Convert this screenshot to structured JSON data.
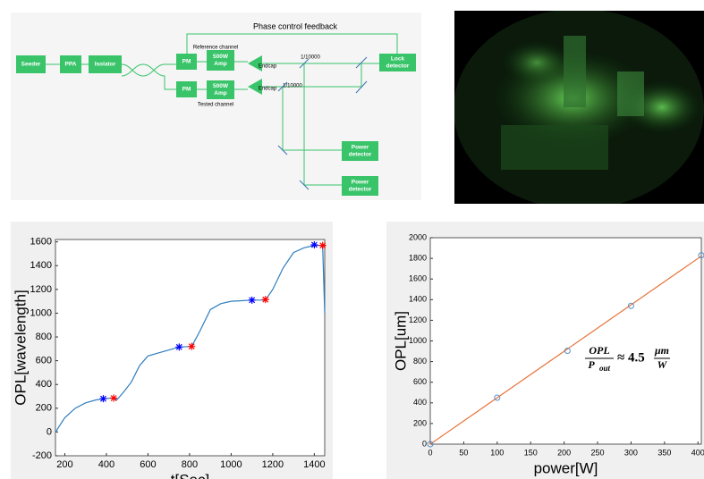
{
  "diagram": {
    "title": "Phase control feedback",
    "nodes": [
      {
        "lines": [
          "Seeder"
        ]
      },
      {
        "lines": [
          "PPA"
        ]
      },
      {
        "lines": [
          "Isolator"
        ]
      },
      {
        "lines": [
          "PM"
        ]
      },
      {
        "lines": [
          "500W",
          "Amp"
        ]
      },
      {
        "lines": [
          "PM"
        ]
      },
      {
        "lines": [
          "500W",
          "Amp"
        ]
      },
      {
        "lines": [
          "Lock",
          "detector"
        ]
      },
      {
        "lines": [
          "Power",
          "detector"
        ]
      },
      {
        "lines": [
          "Power",
          "detector"
        ]
      }
    ],
    "labels": [
      "Reference channel",
      "Tested channel",
      "Endcap",
      "Endcap",
      "1/10000",
      "1/10000"
    ]
  },
  "chart_data": [
    {
      "type": "line",
      "xlabel": "t[Sec]",
      "ylabel": "OPL[wavelength]",
      "xlim": [
        155,
        1450
      ],
      "ylim": [
        -200,
        1620
      ],
      "xticks": [
        200,
        400,
        600,
        800,
        1000,
        1200,
        1400
      ],
      "yticks": [
        -200,
        0,
        200,
        400,
        600,
        800,
        1000,
        1200,
        1400,
        1600
      ],
      "series": [
        {
          "mode": "line",
          "color": "#2f7dbd",
          "x": [
            155,
            170,
            200,
            250,
            300,
            350,
            385,
            420,
            435,
            450,
            480,
            520,
            560,
            600,
            650,
            700,
            750,
            810,
            850,
            900,
            950,
            1000,
            1050,
            1100,
            1165,
            1200,
            1250,
            1300,
            1350,
            1400,
            1440,
            1450
          ],
          "values": [
            -5,
            40,
            120,
            200,
            245,
            270,
            280,
            285,
            285,
            270,
            330,
            420,
            560,
            640,
            665,
            690,
            715,
            720,
            850,
            1030,
            1080,
            1100,
            1105,
            1110,
            1110,
            1200,
            1380,
            1510,
            1550,
            1570,
            1570,
            1000
          ]
        },
        {
          "mode": "marker",
          "color": "#0000ff",
          "x": [
            385,
            750,
            1100,
            1400
          ],
          "values": [
            280,
            715,
            1110,
            1575
          ]
        },
        {
          "mode": "marker",
          "color": "#ff0000",
          "x": [
            435,
            810,
            1165,
            1440
          ],
          "values": [
            285,
            720,
            1115,
            1570
          ]
        }
      ]
    },
    {
      "type": "scatter",
      "xlabel": "power[W]",
      "ylabel": "OPL[um]",
      "xlim": [
        0,
        405
      ],
      "ylim": [
        0,
        2000
      ],
      "xticks": [
        0,
        50,
        100,
        150,
        200,
        250,
        300,
        350,
        400
      ],
      "yticks": [
        0,
        200,
        400,
        600,
        800,
        1000,
        1200,
        1400,
        1600,
        1800,
        2000
      ],
      "annotation": {
        "num": "OPL",
        "den": "P",
        "sub": "out",
        "rel": "≈ 4.5",
        "unit_num": "μm",
        "unit_den": "W"
      },
      "series": [
        {
          "mode": "line",
          "color": "#e8743b",
          "x": [
            0,
            405
          ],
          "values": [
            0,
            1822
          ]
        },
        {
          "mode": "marker",
          "color": "#5b8fc7",
          "x": [
            0,
            100,
            205,
            300,
            405
          ],
          "values": [
            0,
            450,
            905,
            1340,
            1830
          ]
        }
      ]
    }
  ]
}
